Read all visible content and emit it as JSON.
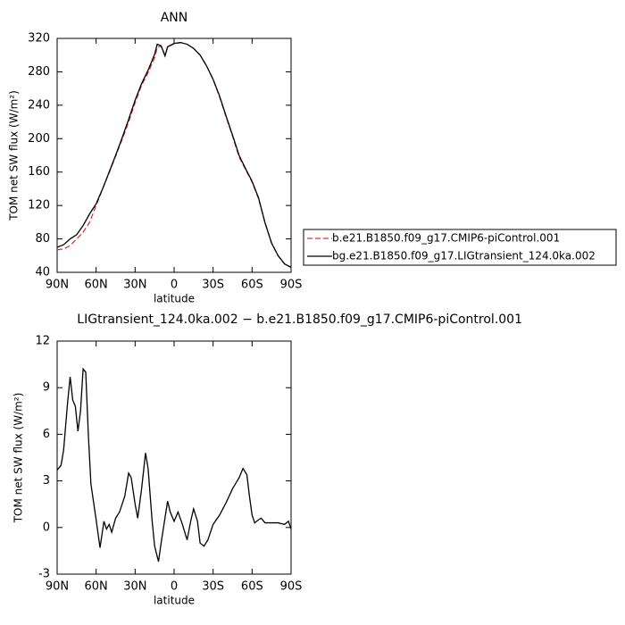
{
  "chart_data": [
    {
      "type": "line",
      "title": "ANN",
      "xlabel": "latitude",
      "ylabel": "TOM net SW flux (W/m²)",
      "x": [
        90,
        85,
        80,
        75,
        70,
        65,
        60,
        55,
        50,
        45,
        40,
        35,
        30,
        25,
        20,
        15,
        13,
        10,
        7,
        5,
        0,
        -5,
        -10,
        -15,
        -20,
        -25,
        -30,
        -35,
        -40,
        -45,
        -50,
        -55,
        -60,
        -65,
        -70,
        -75,
        -80,
        -85,
        -90
      ],
      "series": [
        {
          "name": "b.e21.B1850.f09_g17.CMIP6-piControl.001",
          "color": "#e8312f",
          "dash": true,
          "values": [
            67,
            68,
            72,
            80,
            88,
            100,
            120,
            140,
            159,
            179,
            199,
            220,
            243,
            264,
            279,
            297,
            309,
            311,
            300,
            309,
            314,
            315,
            313,
            308,
            300,
            287,
            271,
            250,
            226,
            203,
            178,
            163,
            148,
            128,
            99,
            75,
            60,
            50,
            46
          ]
        },
        {
          "name": "bg.e21.B1850.f09_g17.LIGtransient_124.0ka.002",
          "color": "#000000",
          "dash": false,
          "values": [
            70,
            73,
            80,
            85,
            96,
            110,
            122,
            140,
            160,
            180,
            201,
            223,
            246,
            266,
            282,
            301,
            313,
            311,
            299,
            310,
            314,
            315,
            313,
            308,
            300,
            287,
            271,
            251,
            227,
            204,
            180,
            164,
            149,
            129,
            99,
            75,
            60,
            50,
            46
          ]
        }
      ],
      "xlim": [
        90,
        -90
      ],
      "ylim": [
        40,
        320
      ],
      "xticks": [
        {
          "value": 90,
          "label": "90N"
        },
        {
          "value": 60,
          "label": "60N"
        },
        {
          "value": 30,
          "label": "30N"
        },
        0,
        {
          "value": -30,
          "label": "30S"
        },
        {
          "value": -60,
          "label": "60S"
        },
        {
          "value": -90,
          "label": "90S"
        }
      ],
      "yticks": [
        40,
        80,
        120,
        160,
        200,
        240,
        280,
        320
      ],
      "legend": "right"
    },
    {
      "type": "line",
      "title": "LIGtransient_124.0ka.002 − b.e21.B1850.f09_g17.CMIP6-piControl.001",
      "xlabel": "latitude",
      "ylabel": "TOM net SW flux (W/m²)",
      "x": [
        90,
        87,
        85,
        82,
        80,
        78,
        76,
        74,
        72,
        70,
        68,
        66,
        64,
        60,
        57,
        54,
        52,
        50,
        48,
        45,
        42,
        38,
        35,
        33,
        30,
        28,
        25,
        22,
        20,
        17,
        15,
        12,
        10,
        5,
        3,
        0,
        -3,
        -6,
        -10,
        -13,
        -15,
        -18,
        -20,
        -23,
        -26,
        -30,
        -35,
        -40,
        -45,
        -50,
        -53,
        -56,
        -58,
        -60,
        -62,
        -65,
        -67,
        -70,
        -75,
        -80,
        -85,
        -88,
        -90
      ],
      "series": [
        {
          "name": null,
          "color": "#000000",
          "dash": false,
          "values": [
            3.7,
            4.0,
            5.0,
            8.0,
            9.7,
            8.2,
            7.8,
            6.2,
            7.5,
            10.2,
            10.0,
            6.0,
            2.8,
            0.5,
            -1.3,
            0.4,
            -0.1,
            0.2,
            -0.3,
            0.6,
            1.0,
            2.0,
            3.5,
            3.2,
            1.5,
            0.6,
            2.5,
            4.8,
            3.8,
            0.5,
            -1.2,
            -2.2,
            -1.0,
            1.7,
            1.0,
            0.4,
            1.0,
            0.3,
            -0.8,
            0.5,
            1.2,
            0.4,
            -1.0,
            -1.2,
            -0.8,
            0.2,
            0.8,
            1.6,
            2.5,
            3.2,
            3.8,
            3.4,
            2.0,
            0.8,
            0.3,
            0.5,
            0.6,
            0.3,
            0.3,
            0.3,
            0.2,
            0.4,
            -0.1
          ]
        }
      ],
      "xlim": [
        90,
        -90
      ],
      "ylim": [
        -3,
        12
      ],
      "xticks": [
        {
          "value": 90,
          "label": "90N"
        },
        {
          "value": 60,
          "label": "60N"
        },
        {
          "value": 30,
          "label": "30N"
        },
        0,
        {
          "value": -30,
          "label": "30S"
        },
        {
          "value": -60,
          "label": "60S"
        },
        {
          "value": -90,
          "label": "90S"
        }
      ],
      "yticks": [
        -3,
        0,
        3,
        6,
        9,
        12
      ]
    }
  ]
}
